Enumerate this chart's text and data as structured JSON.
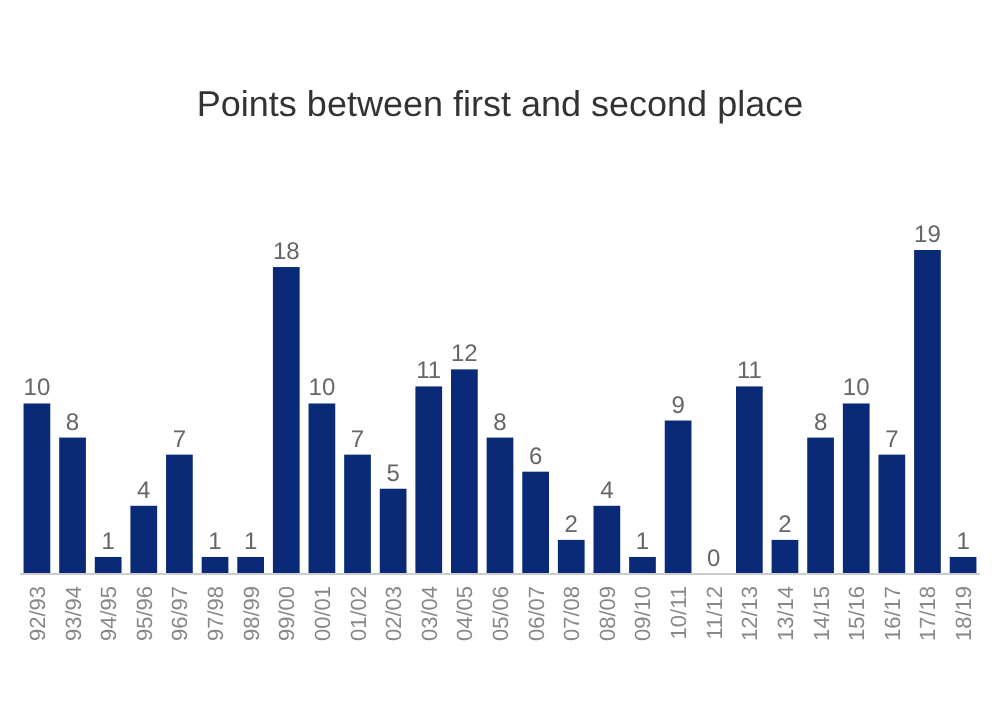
{
  "chart_data": {
    "type": "bar",
    "title": "Points between first and second place",
    "categories": [
      "92/93",
      "93/94",
      "94/95",
      "95/96",
      "96/97",
      "97/98",
      "98/99",
      "99/00",
      "00/01",
      "01/02",
      "02/03",
      "03/04",
      "04/05",
      "05/06",
      "06/07",
      "07/08",
      "08/09",
      "09/10",
      "10/11",
      "11/12",
      "12/13",
      "13/14",
      "14/15",
      "15/16",
      "16/17",
      "17/18",
      "18/19"
    ],
    "values": [
      10,
      8,
      1,
      4,
      7,
      1,
      1,
      18,
      10,
      7,
      5,
      11,
      12,
      8,
      6,
      2,
      4,
      1,
      9,
      0,
      11,
      2,
      8,
      10,
      7,
      19,
      1
    ],
    "color": "#0a2a78",
    "data_labels": true,
    "grid": false
  }
}
